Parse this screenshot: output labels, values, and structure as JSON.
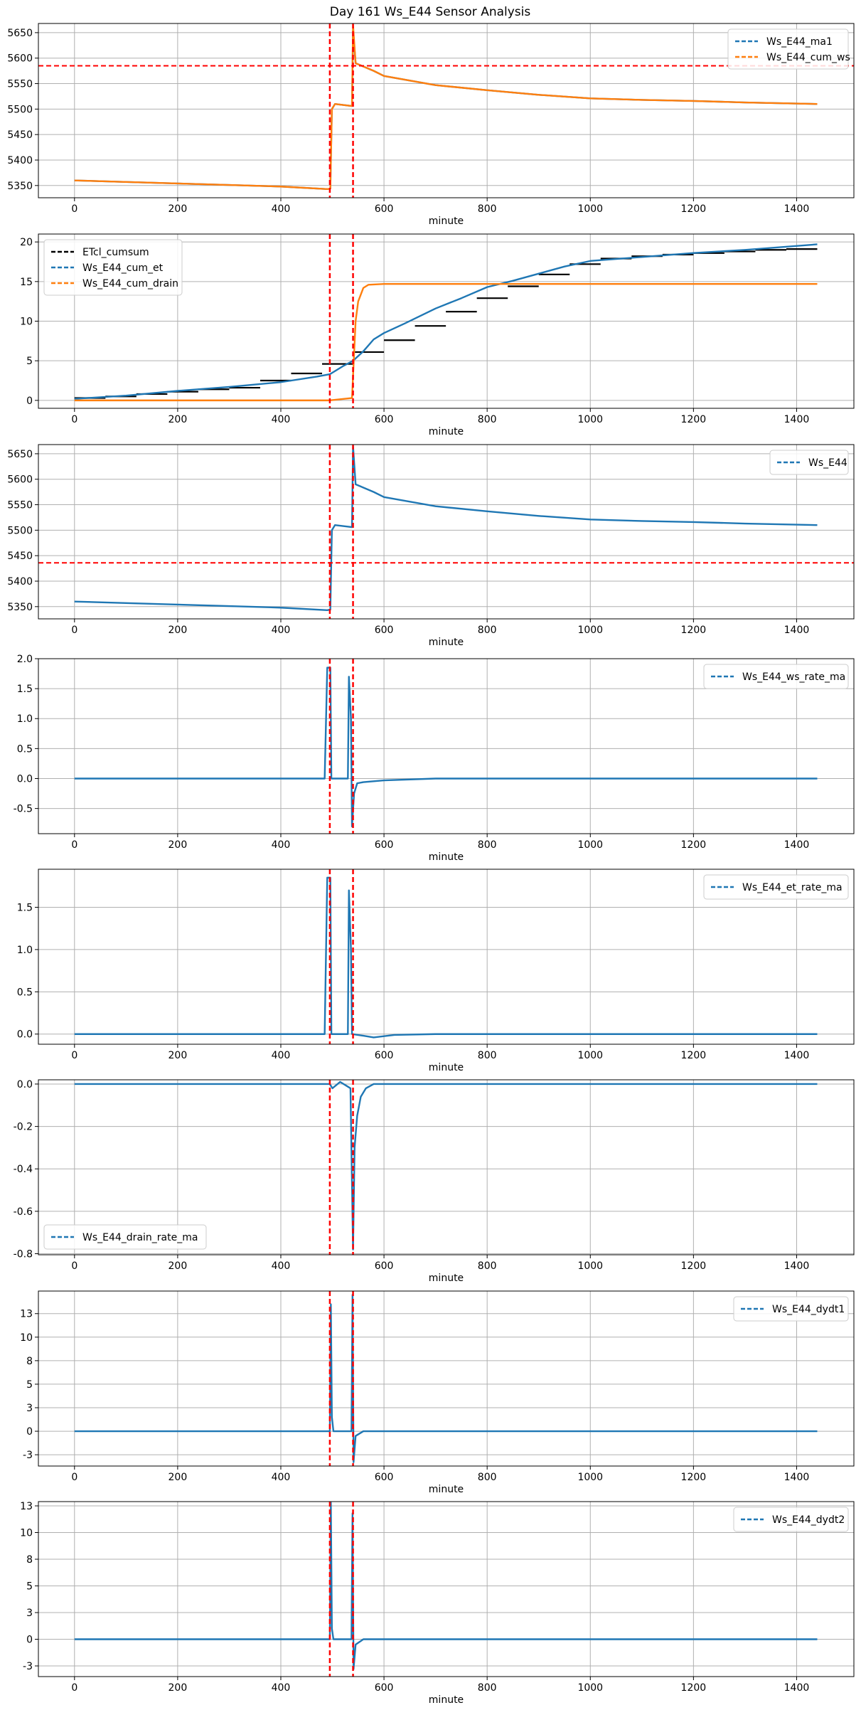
{
  "figure_title": "Day 161 Ws_E44 Sensor Analysis",
  "colors": {
    "blue": "#1f77b4",
    "orange": "#ff7f0e",
    "black": "#000000",
    "red": "#ff0000",
    "grid": "#b0b0b0"
  },
  "chart_data": [
    {
      "type": "line",
      "xlabel": "minute",
      "xlim": [
        -70,
        1511
      ],
      "ylim": [
        5326,
        5668
      ],
      "xticks": [
        0,
        200,
        400,
        600,
        800,
        1000,
        1200,
        1400
      ],
      "yticks": [
        5350,
        5400,
        5450,
        5500,
        5550,
        5600,
        5650
      ],
      "grid": true,
      "legend_loc": "upper-right",
      "vlines": [
        495,
        540
      ],
      "hlines": [
        5585
      ],
      "series": [
        {
          "name": "Ws_E44_ma1",
          "color": "#1f77b4",
          "points": [
            [
              0,
              5360
            ],
            [
              100,
              5357
            ],
            [
              200,
              5354
            ],
            [
              300,
              5351
            ],
            [
              400,
              5348
            ],
            [
              490,
              5343
            ],
            [
              496,
              5344
            ],
            [
              499,
              5500
            ],
            [
              505,
              5510
            ],
            [
              538,
              5506
            ],
            [
              540,
              5655
            ],
            [
              545,
              5590
            ],
            [
              580,
              5575
            ],
            [
              600,
              5565
            ],
            [
              700,
              5547
            ],
            [
              800,
              5537
            ],
            [
              900,
              5528
            ],
            [
              1000,
              5521
            ],
            [
              1100,
              5518
            ],
            [
              1200,
              5516
            ],
            [
              1300,
              5513
            ],
            [
              1440,
              5510
            ]
          ]
        },
        {
          "name": "Ws_E44_cum_ws",
          "color": "#ff7f0e",
          "points": [
            [
              0,
              5360
            ],
            [
              100,
              5357
            ],
            [
              200,
              5354
            ],
            [
              300,
              5351
            ],
            [
              400,
              5348
            ],
            [
              490,
              5343
            ],
            [
              496,
              5344
            ],
            [
              499,
              5500
            ],
            [
              505,
              5510
            ],
            [
              538,
              5506
            ],
            [
              540,
              5665
            ],
            [
              545,
              5590
            ],
            [
              580,
              5575
            ],
            [
              600,
              5565
            ],
            [
              700,
              5547
            ],
            [
              800,
              5537
            ],
            [
              900,
              5528
            ],
            [
              1000,
              5521
            ],
            [
              1100,
              5518
            ],
            [
              1200,
              5516
            ],
            [
              1300,
              5513
            ],
            [
              1440,
              5510
            ]
          ]
        }
      ]
    },
    {
      "type": "line",
      "xlabel": "minute",
      "xlim": [
        -70,
        1511
      ],
      "ylim": [
        -1,
        21
      ],
      "xticks": [
        0,
        200,
        400,
        600,
        800,
        1000,
        1200,
        1400
      ],
      "yticks": [
        0,
        5,
        10,
        15,
        20
      ],
      "grid": true,
      "legend_loc": "upper-left",
      "vlines": [
        495,
        540
      ],
      "hlines": [],
      "series": [
        {
          "name": "ETcl_cumsum",
          "color": "#000000",
          "step": true,
          "points": [
            [
              0,
              0.3
            ],
            [
              60,
              0.5
            ],
            [
              120,
              0.8
            ],
            [
              180,
              1.1
            ],
            [
              240,
              1.4
            ],
            [
              300,
              1.6
            ],
            [
              360,
              2.5
            ],
            [
              420,
              3.4
            ],
            [
              480,
              4.6
            ],
            [
              540,
              6.1
            ],
            [
              600,
              7.6
            ],
            [
              660,
              9.4
            ],
            [
              720,
              11.2
            ],
            [
              780,
              12.9
            ],
            [
              840,
              14.4
            ],
            [
              900,
              15.9
            ],
            [
              960,
              17.2
            ],
            [
              1020,
              17.9
            ],
            [
              1080,
              18.2
            ],
            [
              1140,
              18.4
            ],
            [
              1200,
              18.6
            ],
            [
              1260,
              18.8
            ],
            [
              1320,
              19.0
            ],
            [
              1380,
              19.1
            ],
            [
              1440,
              19.1
            ]
          ]
        },
        {
          "name": "Ws_E44_cum_et",
          "color": "#1f77b4",
          "points": [
            [
              0,
              0.2
            ],
            [
              100,
              0.6
            ],
            [
              200,
              1.2
            ],
            [
              300,
              1.7
            ],
            [
              400,
              2.3
            ],
            [
              470,
              3.0
            ],
            [
              495,
              3.3
            ],
            [
              520,
              4.3
            ],
            [
              540,
              5.0
            ],
            [
              560,
              6.2
            ],
            [
              580,
              7.7
            ],
            [
              600,
              8.5
            ],
            [
              640,
              9.7
            ],
            [
              700,
              11.6
            ],
            [
              750,
              12.9
            ],
            [
              800,
              14.3
            ],
            [
              850,
              15.1
            ],
            [
              900,
              16.0
            ],
            [
              950,
              16.9
            ],
            [
              1000,
              17.6
            ],
            [
              1100,
              18.1
            ],
            [
              1200,
              18.6
            ],
            [
              1300,
              19.0
            ],
            [
              1440,
              19.7
            ]
          ]
        },
        {
          "name": "Ws_E44_cum_drain",
          "color": "#ff7f0e",
          "points": [
            [
              0,
              0
            ],
            [
              495,
              0
            ],
            [
              538,
              0.3
            ],
            [
              545,
              10
            ],
            [
              550,
              12.5
            ],
            [
              560,
              14.2
            ],
            [
              570,
              14.6
            ],
            [
              600,
              14.7
            ],
            [
              1440,
              14.7
            ]
          ]
        }
      ]
    },
    {
      "type": "line",
      "xlabel": "minute",
      "xlim": [
        -70,
        1511
      ],
      "ylim": [
        5326,
        5668
      ],
      "xticks": [
        0,
        200,
        400,
        600,
        800,
        1000,
        1200,
        1400
      ],
      "yticks": [
        5350,
        5400,
        5450,
        5500,
        5550,
        5600,
        5650
      ],
      "grid": true,
      "legend_loc": "upper-right",
      "vlines": [
        495,
        540
      ],
      "hlines": [
        5436
      ],
      "series": [
        {
          "name": "Ws_E44",
          "color": "#1f77b4",
          "points": [
            [
              0,
              5360
            ],
            [
              100,
              5357
            ],
            [
              200,
              5354
            ],
            [
              300,
              5351
            ],
            [
              400,
              5348
            ],
            [
              490,
              5343
            ],
            [
              496,
              5344
            ],
            [
              499,
              5500
            ],
            [
              505,
              5510
            ],
            [
              538,
              5506
            ],
            [
              540,
              5665
            ],
            [
              545,
              5590
            ],
            [
              580,
              5575
            ],
            [
              600,
              5565
            ],
            [
              700,
              5547
            ],
            [
              800,
              5537
            ],
            [
              900,
              5528
            ],
            [
              1000,
              5521
            ],
            [
              1100,
              5518
            ],
            [
              1200,
              5516
            ],
            [
              1300,
              5513
            ],
            [
              1440,
              5510
            ]
          ]
        }
      ]
    },
    {
      "type": "line",
      "xlabel": "minute",
      "xlim": [
        -70,
        1511
      ],
      "ylim": [
        -0.92,
        2.0
      ],
      "xticks": [
        0,
        200,
        400,
        600,
        800,
        1000,
        1200,
        1400
      ],
      "yticks": [
        -0.5,
        0.0,
        0.5,
        1.0,
        1.5,
        2.0
      ],
      "grid": true,
      "legend_loc": "upper-right",
      "vlines": [
        495,
        540
      ],
      "hlines": [],
      "series": [
        {
          "name": "Ws_E44_ws_rate_ma",
          "color": "#1f77b4",
          "points": [
            [
              0,
              0
            ],
            [
              485,
              0
            ],
            [
              490,
              1.85
            ],
            [
              496,
              1.85
            ],
            [
              498,
              0
            ],
            [
              530,
              0
            ],
            [
              532,
              1.7
            ],
            [
              536,
              1.0
            ],
            [
              538,
              -0.8
            ],
            [
              542,
              -0.25
            ],
            [
              548,
              -0.08
            ],
            [
              560,
              -0.06
            ],
            [
              600,
              -0.03
            ],
            [
              700,
              0
            ],
            [
              1440,
              0
            ]
          ]
        }
      ]
    },
    {
      "type": "line",
      "xlabel": "minute",
      "xlim": [
        -70,
        1511
      ],
      "ylim": [
        -0.12,
        1.95
      ],
      "xticks": [
        0,
        200,
        400,
        600,
        800,
        1000,
        1200,
        1400
      ],
      "yticks": [
        0.0,
        0.5,
        1.0,
        1.5
      ],
      "grid": true,
      "legend_loc": "upper-right",
      "vlines": [
        495,
        540
      ],
      "hlines": [],
      "series": [
        {
          "name": "Ws_E44_et_rate_ma",
          "color": "#1f77b4",
          "points": [
            [
              0,
              0
            ],
            [
              485,
              0
            ],
            [
              490,
              1.85
            ],
            [
              496,
              1.85
            ],
            [
              498,
              0
            ],
            [
              530,
              0
            ],
            [
              532,
              1.7
            ],
            [
              536,
              1.0
            ],
            [
              538,
              0
            ],
            [
              560,
              -0.02
            ],
            [
              580,
              -0.04
            ],
            [
              620,
              -0.01
            ],
            [
              700,
              0
            ],
            [
              1440,
              0
            ]
          ]
        }
      ]
    },
    {
      "type": "line",
      "xlabel": "minute",
      "xlim": [
        -70,
        1511
      ],
      "ylim": [
        -0.805,
        0.02
      ],
      "xticks": [
        0,
        200,
        400,
        600,
        800,
        1000,
        1200,
        1400
      ],
      "yticks": [
        -0.8,
        -0.6,
        -0.4,
        -0.2,
        0.0
      ],
      "grid": true,
      "legend_loc": "lower-left",
      "vlines": [
        495,
        540
      ],
      "hlines": [],
      "series": [
        {
          "name": "Ws_E44_drain_rate_ma",
          "color": "#1f77b4",
          "points": [
            [
              0,
              0
            ],
            [
              495,
              0
            ],
            [
              500,
              -0.02
            ],
            [
              515,
              0.01
            ],
            [
              525,
              -0.005
            ],
            [
              535,
              -0.02
            ],
            [
              540,
              -0.78
            ],
            [
              543,
              -0.3
            ],
            [
              548,
              -0.15
            ],
            [
              555,
              -0.06
            ],
            [
              565,
              -0.02
            ],
            [
              580,
              0
            ],
            [
              1440,
              0
            ]
          ]
        }
      ]
    },
    {
      "type": "line",
      "xlabel": "minute",
      "xlim": [
        -70,
        1511
      ],
      "ylim": [
        -3.7,
        14.9
      ],
      "xticks": [
        0,
        200,
        400,
        600,
        800,
        1000,
        1200,
        1400
      ],
      "yticks": [
        -2.5,
        0.0,
        2.5,
        5.0,
        7.5,
        10.0,
        12.5
      ],
      "grid": true,
      "legend_loc": "upper-right",
      "vlines": [
        495,
        540
      ],
      "hlines": [],
      "series": [
        {
          "name": "Ws_E44_dydt1",
          "color": "#1f77b4",
          "points": [
            [
              0,
              0
            ],
            [
              495,
              0
            ],
            [
              497,
              13.5
            ],
            [
              499,
              1.5
            ],
            [
              502,
              0
            ],
            [
              537,
              0
            ],
            [
              539,
              14.5
            ],
            [
              541,
              -3.3
            ],
            [
              545,
              -0.5
            ],
            [
              560,
              0
            ],
            [
              1440,
              0
            ]
          ]
        }
      ]
    },
    {
      "type": "line",
      "xlabel": "minute",
      "xlim": [
        -70,
        1511
      ],
      "ylim": [
        -3.5,
        12.9
      ],
      "xticks": [
        0,
        200,
        400,
        600,
        800,
        1000,
        1200,
        1400
      ],
      "yticks": [
        -2.5,
        0.0,
        2.5,
        5.0,
        7.5,
        10.0,
        12.5
      ],
      "grid": true,
      "legend_loc": "upper-right",
      "vlines": [
        495,
        540
      ],
      "hlines": [],
      "series": [
        {
          "name": "Ws_E44_dydt2",
          "color": "#1f77b4",
          "points": [
            [
              0,
              0
            ],
            [
              495,
              0
            ],
            [
              497,
              12.8
            ],
            [
              499,
              1.0
            ],
            [
              502,
              0
            ],
            [
              537,
              0
            ],
            [
              539,
              11.8
            ],
            [
              541,
              -2.8
            ],
            [
              545,
              -0.5
            ],
            [
              560,
              0
            ],
            [
              1440,
              0
            ]
          ]
        }
      ]
    }
  ]
}
